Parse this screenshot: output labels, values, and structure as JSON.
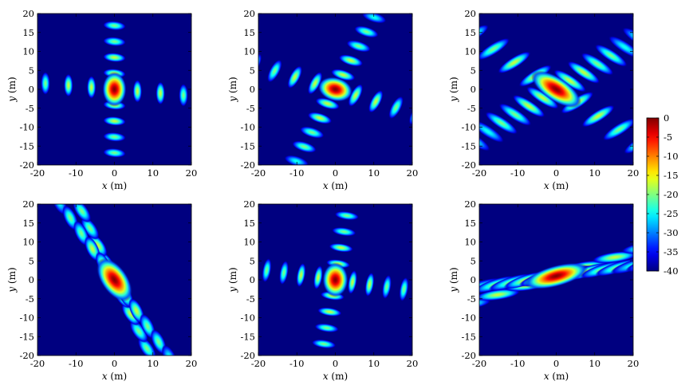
{
  "chart_data": {
    "type": "heatmap",
    "colormap": "jet",
    "colorbar": {
      "range": [
        -40,
        0
      ],
      "ticks": [
        "0",
        "-5",
        "-10",
        "-15",
        "-20",
        "-25",
        "-30",
        "-35",
        "-40"
      ],
      "tick_values": [
        0,
        -5,
        -10,
        -15,
        -20,
        -25,
        -30,
        -35,
        -40
      ]
    },
    "background_value": -40,
    "panels": [
      {
        "xlabel_var": "x",
        "xlabel_unit": " (m)",
        "ylabel_var": "y",
        "ylabel_unit": " (m)",
        "xlim": [
          -20,
          20
        ],
        "ylim": [
          -20,
          20
        ],
        "xticks": [
          "-20",
          "-10",
          "0",
          "10",
          "20"
        ],
        "yticks": [
          "20",
          "15",
          "10",
          "5",
          "0",
          "-5",
          "-10",
          "-15",
          "-20"
        ],
        "pattern": {
          "arm1_angle_deg": 90,
          "arm2_angle_deg": -5,
          "main_lobe": {
            "x": 0,
            "y": 0,
            "major_m": 4.5,
            "minor_m": 3.2,
            "angle_deg": 90
          },
          "arm1_spacing_m": 4.2,
          "arm2_spacing_m": 6.0,
          "lobe_major_m": 3.0,
          "lobe_minor_m": 1.2,
          "peak_sidelobe": -17
        }
      },
      {
        "xlabel_var": "x",
        "xlabel_unit": " (m)",
        "ylabel_var": "y",
        "ylabel_unit": " (m)",
        "xlim": [
          -20,
          20
        ],
        "ylim": [
          -20,
          20
        ],
        "xticks": [
          "-20",
          "-10",
          "0",
          "10",
          "20"
        ],
        "yticks": [
          "20",
          "15",
          "10",
          "5",
          "0",
          "-5",
          "-10",
          "-15",
          "-20"
        ],
        "pattern": {
          "arm1_angle_deg": 62,
          "arm2_angle_deg": -17,
          "main_lobe": {
            "x": 0,
            "y": 0,
            "major_m": 4.6,
            "minor_m": 3.2,
            "angle_deg": -15
          },
          "arm1_spacing_m": 4.3,
          "arm2_spacing_m": 5.5,
          "lobe_major_m": 3.3,
          "lobe_minor_m": 1.3,
          "peak_sidelobe": -17
        }
      },
      {
        "xlabel_var": "x",
        "xlabel_unit": " (m)",
        "ylabel_var": "y",
        "ylabel_unit": " (m)",
        "xlim": [
          -20,
          20
        ],
        "ylim": [
          -20,
          20
        ],
        "xticks": [
          "-20",
          "-10",
          "0",
          "10",
          "20"
        ],
        "yticks": [
          "20",
          "15",
          "10",
          "5",
          "0",
          "-5",
          "-10",
          "-15",
          "-20"
        ],
        "pattern": {
          "arm1_angle_deg": 32,
          "arm2_angle_deg": -33,
          "main_lobe": {
            "x": 0,
            "y": 0,
            "major_m": 7.5,
            "minor_m": 3.2,
            "angle_deg": -33
          },
          "arm1_spacing_m": 4.2,
          "arm2_spacing_m": 6.5,
          "lobe_major_m": 5.0,
          "lobe_minor_m": 1.4,
          "peak_sidelobe": -18
        }
      },
      {
        "xlabel_var": "x",
        "xlabel_unit": " (m)",
        "ylabel_var": "y",
        "ylabel_unit": " (m)",
        "xlim": [
          -20,
          20
        ],
        "ylim": [
          -20,
          20
        ],
        "xticks": [
          "-20",
          "-10",
          "0",
          "10",
          "20"
        ],
        "yticks": [
          "20",
          "15",
          "10",
          "5",
          "0",
          "-5",
          "-10",
          "-15",
          "-20"
        ],
        "pattern": {
          "arm1_angle_deg": 115,
          "arm2_angle_deg": -55,
          "main_lobe": {
            "x": 0,
            "y": 0,
            "major_m": 6.5,
            "minor_m": 3.5,
            "angle_deg": -55
          },
          "arm1_spacing_m": 5.0,
          "arm2_spacing_m": 5.0,
          "lobe_major_m": 3.5,
          "lobe_minor_m": 1.6,
          "peak_sidelobe": -16
        }
      },
      {
        "xlabel_var": "x",
        "xlabel_unit": " (m)",
        "ylabel_var": "y",
        "ylabel_unit": " (m)",
        "xlim": [
          -20,
          20
        ],
        "ylim": [
          -20,
          20
        ],
        "xticks": [
          "-20",
          "-10",
          "0",
          "10",
          "20"
        ],
        "yticks": [
          "20",
          "15",
          "10",
          "5",
          "0",
          "-5",
          "-10",
          "-15",
          "-20"
        ],
        "pattern": {
          "arm1_angle_deg": 80,
          "arm2_angle_deg": -8,
          "main_lobe": {
            "x": 0,
            "y": 0,
            "major_m": 4.5,
            "minor_m": 3.4,
            "angle_deg": 90
          },
          "arm1_spacing_m": 4.3,
          "arm2_spacing_m": 4.5,
          "lobe_major_m": 3.2,
          "lobe_minor_m": 1.1,
          "peak_sidelobe": -17
        }
      },
      {
        "xlabel_var": "x",
        "xlabel_unit": " (m)",
        "ylabel_var": "y",
        "ylabel_unit": " (m)",
        "xlim": [
          -20,
          20
        ],
        "ylim": [
          -20,
          20
        ],
        "xticks": [
          "-20",
          "-10",
          "0",
          "10",
          "20"
        ],
        "yticks": [
          "20",
          "15",
          "10",
          "5",
          "0",
          "-5",
          "-10",
          "-15",
          "-20"
        ],
        "pattern": {
          "arm1_angle_deg": 18,
          "arm2_angle_deg": 8,
          "main_lobe": {
            "x": 0,
            "y": 1,
            "major_m": 8.5,
            "minor_m": 2.8,
            "angle_deg": 15
          },
          "arm1_spacing_m": 8.0,
          "arm2_spacing_m": 4.0,
          "lobe_major_m": 6.0,
          "lobe_minor_m": 1.4,
          "peak_sidelobe": -18
        }
      }
    ]
  }
}
